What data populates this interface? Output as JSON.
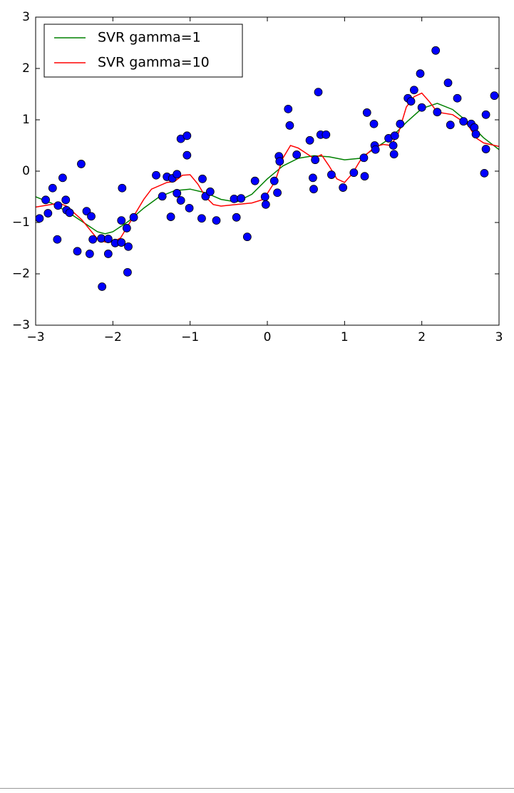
{
  "chart_data": {
    "type": "line",
    "xlim": [
      -3,
      3
    ],
    "ylim": [
      -3,
      3
    ],
    "xticks": [
      {
        "value": -3,
        "label": "−3"
      },
      {
        "value": -2,
        "label": "−2"
      },
      {
        "value": -1,
        "label": "−1"
      },
      0,
      1,
      2,
      3
    ],
    "yticks": [
      {
        "value": -3,
        "label": "−3"
      },
      {
        "value": -2,
        "label": "−2"
      },
      {
        "value": -1,
        "label": "−1"
      },
      0,
      1,
      2,
      3
    ],
    "legend": "upper-left",
    "series": [
      {
        "name": "SVR gamma=1",
        "color": "#008000",
        "x": [
          -3,
          -2.8,
          -2.6,
          -2.4,
          -2.2,
          -2.1,
          -2.0,
          -1.8,
          -1.6,
          -1.4,
          -1.2,
          -1.0,
          -0.8,
          -0.6,
          -0.4,
          -0.2,
          0,
          0.2,
          0.4,
          0.6,
          0.8,
          1.0,
          1.2,
          1.4,
          1.6,
          1.8,
          2.0,
          2.2,
          2.4,
          2.6,
          2.8,
          3.0
        ],
        "values": [
          -0.5,
          -0.62,
          -0.78,
          -0.98,
          -1.18,
          -1.22,
          -1.18,
          -0.98,
          -0.72,
          -0.5,
          -0.38,
          -0.35,
          -0.42,
          -0.55,
          -0.6,
          -0.45,
          -0.15,
          0.1,
          0.25,
          0.3,
          0.28,
          0.22,
          0.25,
          0.45,
          0.65,
          0.95,
          1.22,
          1.32,
          1.2,
          0.95,
          0.65,
          0.42
        ]
      },
      {
        "name": "SVR gamma=10",
        "color": "#ff0000",
        "x": [
          -3,
          -2.8,
          -2.7,
          -2.6,
          -2.4,
          -2.2,
          -2.1,
          -2.0,
          -1.9,
          -1.8,
          -1.6,
          -1.5,
          -1.3,
          -1.2,
          -1.1,
          -1.0,
          -0.9,
          -0.8,
          -0.7,
          -0.6,
          -0.4,
          -0.2,
          -0.05,
          0.1,
          0.2,
          0.3,
          0.4,
          0.5,
          0.6,
          0.7,
          0.8,
          0.9,
          1.0,
          1.1,
          1.2,
          1.3,
          1.4,
          1.5,
          1.6,
          1.7,
          1.8,
          1.9,
          2.0,
          2.1,
          2.2,
          2.4,
          2.6,
          2.7,
          2.8,
          3.0
        ],
        "values": [
          -0.7,
          -0.65,
          -0.62,
          -0.68,
          -0.95,
          -1.32,
          -1.38,
          -1.38,
          -1.3,
          -1.05,
          -0.55,
          -0.35,
          -0.22,
          -0.2,
          -0.08,
          -0.07,
          -0.25,
          -0.5,
          -0.65,
          -0.68,
          -0.65,
          -0.62,
          -0.55,
          -0.2,
          0.25,
          0.5,
          0.45,
          0.35,
          0.25,
          0.32,
          0.1,
          -0.15,
          -0.22,
          -0.05,
          0.2,
          0.35,
          0.48,
          0.52,
          0.5,
          0.75,
          1.25,
          1.45,
          1.52,
          1.35,
          1.15,
          1.1,
          0.9,
          0.65,
          0.55,
          0.48
        ]
      }
    ],
    "scatter": {
      "color": "#0000ff",
      "x": [
        -2.95,
        -2.87,
        -2.84,
        -2.78,
        -2.72,
        -2.71,
        -2.65,
        -2.61,
        -2.6,
        -2.56,
        -2.46,
        -2.41,
        -2.34,
        -2.28,
        -2.3,
        -2.26,
        -2.15,
        -2.14,
        -2.06,
        -2.06,
        -1.97,
        -1.89,
        -1.89,
        -1.88,
        -1.82,
        -1.8,
        -1.81,
        -1.73,
        -1.44,
        -1.36,
        -1.3,
        -1.25,
        -1.23,
        -1.17,
        -1.17,
        -1.12,
        -1.12,
        -1.04,
        -1.04,
        -1.01,
        -0.85,
        -0.84,
        -0.8,
        -0.74,
        -0.66,
        -0.43,
        -0.4,
        -0.34,
        -0.26,
        -0.16,
        -0.03,
        -0.02,
        0.09,
        0.13,
        0.15,
        0.16,
        0.27,
        0.29,
        0.38,
        0.55,
        0.59,
        0.6,
        0.62,
        0.66,
        0.69,
        0.76,
        0.83,
        0.98,
        1.12,
        1.25,
        1.26,
        1.29,
        1.38,
        1.39,
        1.4,
        1.57,
        1.63,
        1.64,
        1.65,
        1.72,
        1.82,
        1.86,
        1.9,
        1.98,
        2.0,
        2.18,
        2.2,
        2.34,
        2.37,
        2.46,
        2.54,
        2.64,
        2.68,
        2.7,
        2.81,
        2.83,
        2.83,
        2.94
      ],
      "values": [
        -0.92,
        -0.56,
        -0.82,
        -0.33,
        -1.33,
        -0.67,
        -0.13,
        -0.56,
        -0.76,
        -0.81,
        -1.56,
        0.14,
        -0.78,
        -0.88,
        -1.61,
        -1.33,
        -1.31,
        -2.25,
        -1.32,
        -1.61,
        -1.4,
        -1.39,
        -0.96,
        -0.33,
        -1.11,
        -1.47,
        -1.97,
        -0.9,
        -0.08,
        -0.49,
        -0.11,
        -0.89,
        -0.14,
        -0.06,
        -0.43,
        0.63,
        -0.57,
        0.69,
        0.31,
        -0.72,
        -0.92,
        -0.15,
        -0.49,
        -0.4,
        -0.96,
        -0.54,
        -0.9,
        -0.53,
        -1.28,
        -0.19,
        -0.5,
        -0.65,
        -0.19,
        -0.42,
        0.29,
        0.19,
        1.21,
        0.89,
        0.32,
        0.6,
        -0.13,
        -0.35,
        0.22,
        1.54,
        0.71,
        0.71,
        -0.07,
        -0.32,
        -0.03,
        0.26,
        -0.1,
        1.14,
        0.92,
        0.5,
        0.42,
        0.64,
        0.5,
        0.33,
        0.69,
        0.92,
        1.42,
        1.36,
        1.58,
        1.9,
        1.24,
        2.35,
        1.15,
        1.72,
        0.9,
        1.42,
        0.97,
        0.92,
        0.85,
        0.72,
        -0.04,
        0.43,
        1.1,
        1.47
      ]
    }
  }
}
